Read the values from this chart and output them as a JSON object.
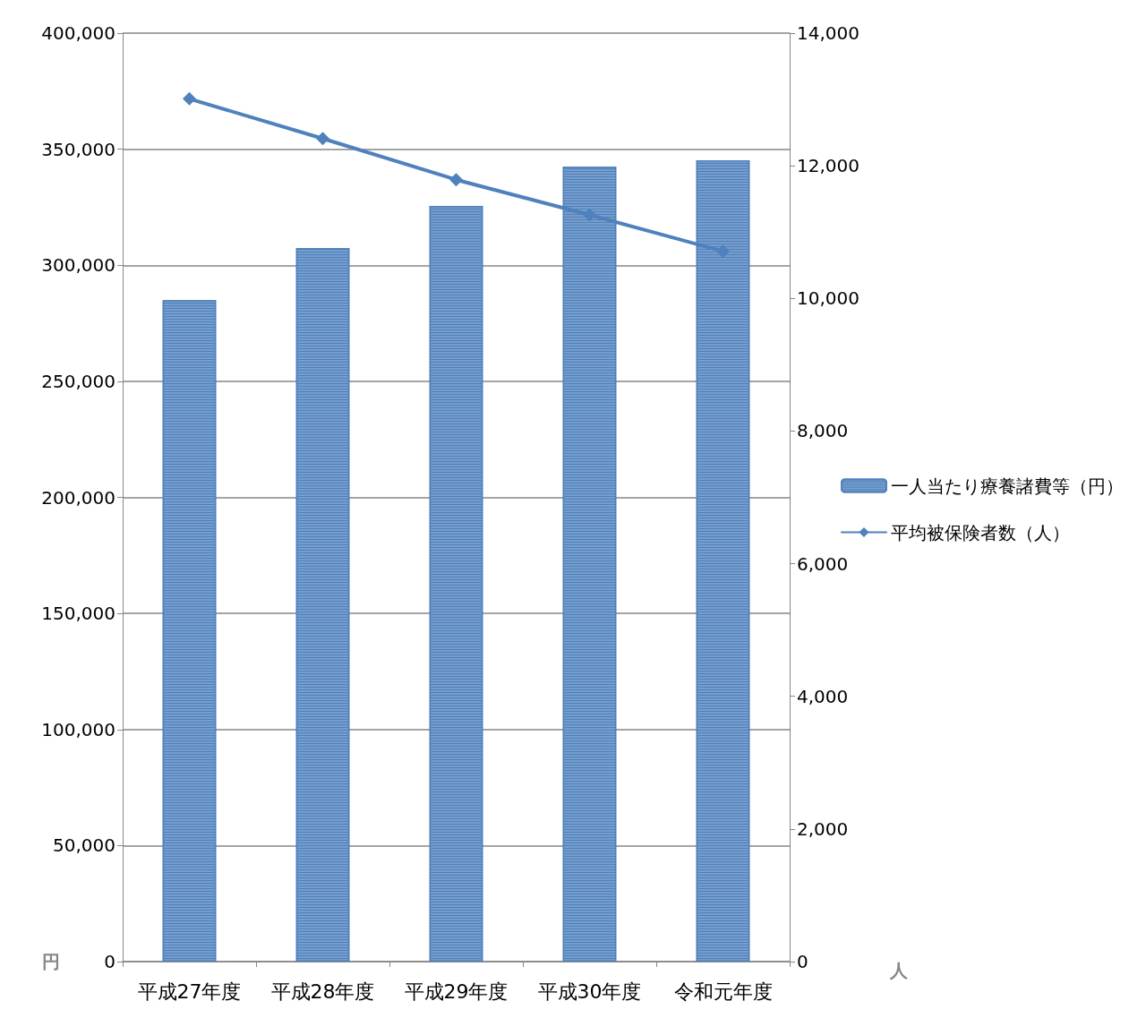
{
  "chart_data": {
    "type": "bar",
    "categories": [
      "平成27年度",
      "平成28年度",
      "平成29年度",
      "平成30年度",
      "令和元年度"
    ],
    "series": [
      {
        "name": "一人当たり療養諸費等（円）",
        "color": "#4f81bd",
        "values": [
          285000,
          307400,
          325600,
          342500,
          345200
        ]
      },
      {
        "name": "平均被保険者数（人）",
        "type": "line",
        "axis": "y2",
        "color": "#4f81bd",
        "marker": "diamond",
        "line_style": "solid",
        "values": [
          13010,
          12410,
          11790,
          11260,
          10710
        ]
      }
    ],
    "ylabel": "円",
    "y2label": "人",
    "ylim": [
      0,
      400000
    ],
    "yticks": [
      {
        "value": 0,
        "label": "0"
      },
      {
        "value": 50000,
        "label": "50,000"
      },
      {
        "value": 100000,
        "label": "100,000"
      },
      {
        "value": 150000,
        "label": "150,000"
      },
      {
        "value": 200000,
        "label": "200,000"
      },
      {
        "value": 250000,
        "label": "250,000"
      },
      {
        "value": 300000,
        "label": "300,000"
      },
      {
        "value": 350000,
        "label": "350,000"
      },
      {
        "value": 400000,
        "label": "400,000"
      }
    ],
    "y2lim": [
      0,
      14000
    ],
    "y2ticks": [
      {
        "value": 0,
        "label": "0"
      },
      {
        "value": 2000,
        "label": "2,000"
      },
      {
        "value": 4000,
        "label": "4,000"
      },
      {
        "value": 6000,
        "label": "6,000"
      },
      {
        "value": 8000,
        "label": "8,000"
      },
      {
        "value": 10000,
        "label": "10,000"
      },
      {
        "value": 12000,
        "label": "12,000"
      },
      {
        "value": 14000,
        "label": "14,000"
      }
    ],
    "grid": "y",
    "legend": "right"
  }
}
